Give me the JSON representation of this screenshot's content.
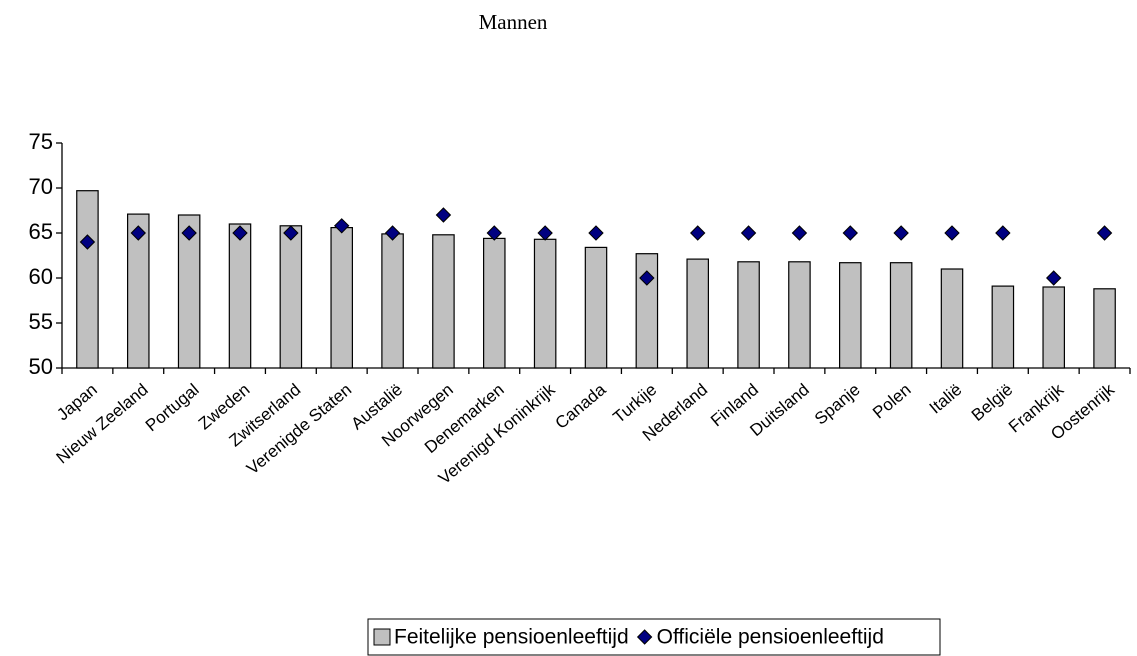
{
  "chart_data": {
    "type": "bar",
    "title": "Mannen",
    "categories": [
      "Japan",
      "Nieuw Zeeland",
      "Portugal",
      "Zweden",
      "Zwitserland",
      "Verenigde Staten",
      "Austalië",
      "Noorwegen",
      "Denemarken",
      "Verenigd Koninkrijk",
      "Canada",
      "Turkije",
      "Nederland",
      "Finland",
      "Duitsland",
      "Spanje",
      "Polen",
      "Italië",
      "België",
      "Frankrijk",
      "Oostenrijk"
    ],
    "series": [
      {
        "name": "Feitelijke pensioenleeftijd",
        "marker": "bar",
        "color": "#c0c0c0",
        "values": [
          69.7,
          67.1,
          67.0,
          66.0,
          65.8,
          65.6,
          64.9,
          64.8,
          64.4,
          64.3,
          63.4,
          62.7,
          62.1,
          61.8,
          61.8,
          61.7,
          61.7,
          61.0,
          59.1,
          59.0,
          58.8
        ]
      },
      {
        "name": "Officiële pensioenleeftijd",
        "marker": "diamond",
        "color": "#000080",
        "values": [
          64,
          65,
          65,
          65,
          65,
          65.8,
          65,
          67,
          65,
          65,
          65,
          60,
          65,
          65,
          65,
          65,
          65,
          65,
          65,
          60,
          65
        ]
      }
    ],
    "ylim": [
      50,
      75
    ],
    "yticks": [
      50,
      55,
      60,
      65,
      70,
      75
    ],
    "grid": false,
    "legend": "bottom"
  }
}
